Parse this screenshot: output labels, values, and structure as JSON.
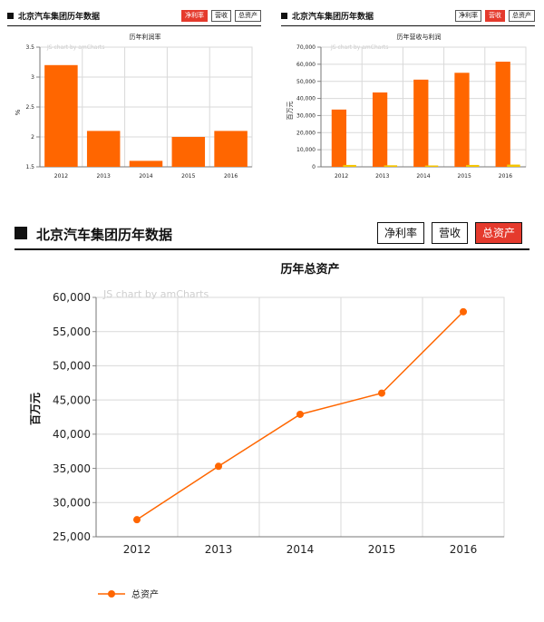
{
  "panels": [
    {
      "title": "北京汽车集团历年数据",
      "buttons": [
        {
          "label": "净利率",
          "active": true
        },
        {
          "label": "营收",
          "active": false
        },
        {
          "label": "总资产",
          "active": false
        }
      ]
    },
    {
      "title": "北京汽车集团历年数据",
      "buttons": [
        {
          "label": "净利率",
          "active": false
        },
        {
          "label": "营收",
          "active": true
        },
        {
          "label": "总资产",
          "active": false
        }
      ]
    },
    {
      "title": "北京汽车集团历年数据",
      "buttons": [
        {
          "label": "净利率",
          "active": false
        },
        {
          "label": "营收",
          "active": false
        },
        {
          "label": "总资产",
          "active": true
        }
      ]
    }
  ],
  "colors": {
    "primary": "#ff6600",
    "secondary": "#f5c400",
    "active_button": "#e53a2d",
    "grid": "#d9d9d9"
  },
  "chart_data": [
    {
      "type": "bar",
      "title": "历年利润率",
      "watermark": "JS chart by amCharts",
      "ylabel": "%",
      "categories": [
        "2012",
        "2013",
        "2014",
        "2015",
        "2016"
      ],
      "values": [
        3.2,
        2.1,
        1.6,
        2.0,
        2.1
      ],
      "ylim": [
        1.5,
        3.5
      ],
      "yticks": [
        1.5,
        2.0,
        2.5,
        3.0,
        3.5
      ],
      "ytick_labels": [
        "1.5",
        "2",
        "2.5",
        "3",
        "3.5"
      ],
      "grid": true
    },
    {
      "type": "bar",
      "title": "历年营收与利润",
      "watermark": "JS chart by amCharts",
      "ylabel": "百万元",
      "categories": [
        "2012",
        "2013",
        "2014",
        "2015",
        "2016"
      ],
      "series": [
        {
          "values": [
            33500,
            43500,
            51000,
            55000,
            61500
          ]
        },
        {
          "values": [
            1100,
            900,
            800,
            1100,
            1300
          ]
        }
      ],
      "ylim": [
        0,
        70000
      ],
      "yticks": [
        0,
        10000,
        20000,
        30000,
        40000,
        50000,
        60000,
        70000
      ],
      "ytick_labels": [
        "0",
        "10,000",
        "20,000",
        "30,000",
        "40,000",
        "50,000",
        "60,000",
        "70,000"
      ],
      "grid": true
    },
    {
      "type": "line",
      "title": "历年总资产",
      "watermark": "JS chart by amCharts",
      "ylabel": "百万元",
      "categories": [
        "2012",
        "2013",
        "2014",
        "2015",
        "2016"
      ],
      "series": [
        {
          "name": "总资产",
          "values": [
            27500,
            35300,
            42900,
            46000,
            57900
          ]
        }
      ],
      "ylim": [
        25000,
        60000
      ],
      "yticks": [
        25000,
        30000,
        35000,
        40000,
        45000,
        50000,
        55000,
        60000
      ],
      "ytick_labels": [
        "25,000",
        "30,000",
        "35,000",
        "40,000",
        "45,000",
        "50,000",
        "55,000",
        "60,000"
      ],
      "legend_position": "bottom-left",
      "grid": true
    }
  ]
}
